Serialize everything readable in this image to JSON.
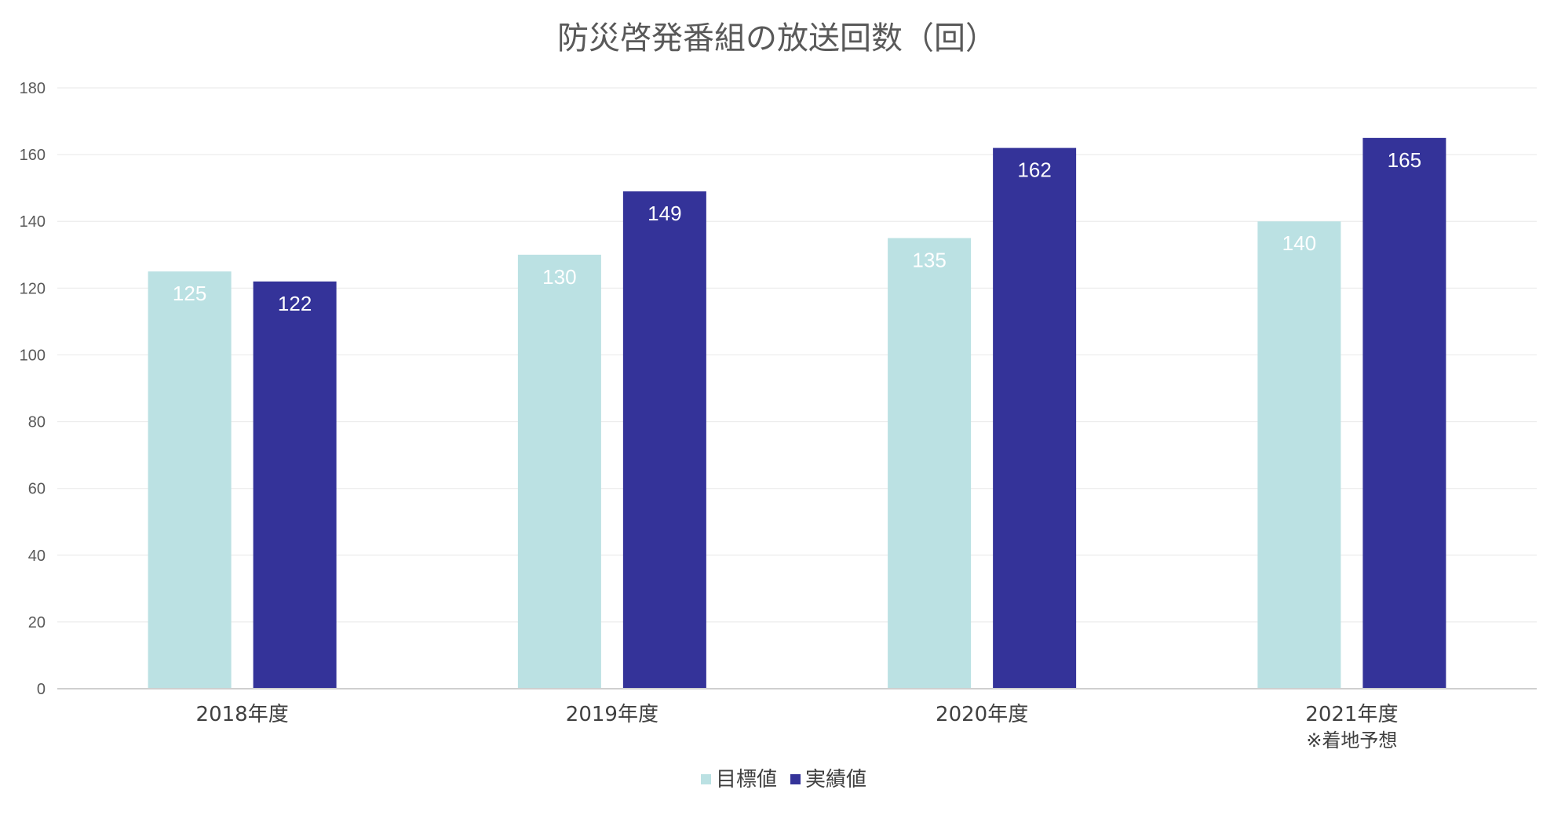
{
  "chart_data": {
    "type": "bar",
    "title": "防災啓発番組の放送回数（回）",
    "categories": [
      "2018年度",
      "2019年度",
      "2020年度",
      "2021年度"
    ],
    "category_notes": [
      "",
      "",
      "",
      "※着地予想"
    ],
    "series": [
      {
        "name": "目標値",
        "values": [
          125,
          130,
          135,
          140
        ],
        "color": "#bbe1e3"
      },
      {
        "name": "実績値",
        "values": [
          122,
          149,
          162,
          165
        ],
        "color": "#343399"
      }
    ],
    "ylim": [
      0,
      180
    ],
    "yticks": [
      0,
      20,
      40,
      60,
      80,
      100,
      120,
      140,
      160,
      180
    ],
    "xlabel": "",
    "ylabel": "",
    "grid": true,
    "legend_position": "bottom",
    "data_labels": true
  }
}
